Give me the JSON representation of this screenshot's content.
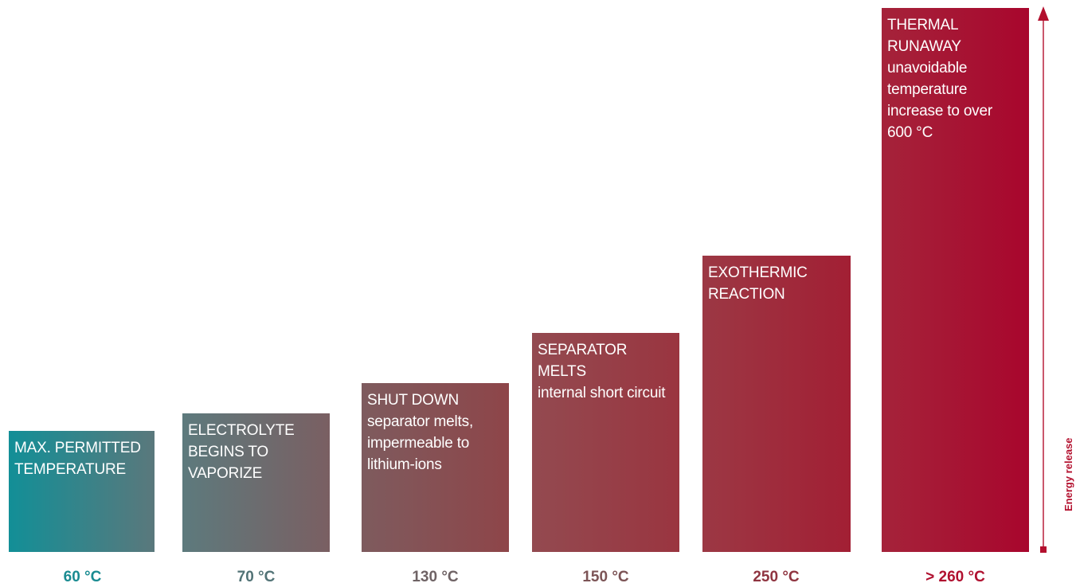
{
  "stages": [
    {
      "title": "MAX. PERMITTED TEMPERATURE",
      "detail": "",
      "temperature": "60 °C",
      "temp_color": "#1a8b91"
    },
    {
      "title": "ELECTROLYTE BEGINS TO VAPORIZE",
      "detail": "",
      "temperature": "70 °C",
      "temp_color": "#527376"
    },
    {
      "title": "SHUT DOWN",
      "detail": "separator melts, impermeable to lithium-ions",
      "temperature": "130 °C",
      "temp_color": "#6f6365"
    },
    {
      "title": "SEPARATOR MELTS",
      "detail": "internal short circuit",
      "temperature": "150 °C",
      "temp_color": "#7c5456"
    },
    {
      "title": "EXOTHERMIC REACTION",
      "detail": "",
      "temperature": "250 °C",
      "temp_color": "#8f3440"
    },
    {
      "title": "THERMAL RUNAWAY",
      "detail": "unavoidable temperature increase to over 600 °C",
      "temperature": "> 260 °C",
      "temp_color": "#b0102f"
    }
  ],
  "axis": {
    "label": "Energy release",
    "color": "#b3102e"
  }
}
